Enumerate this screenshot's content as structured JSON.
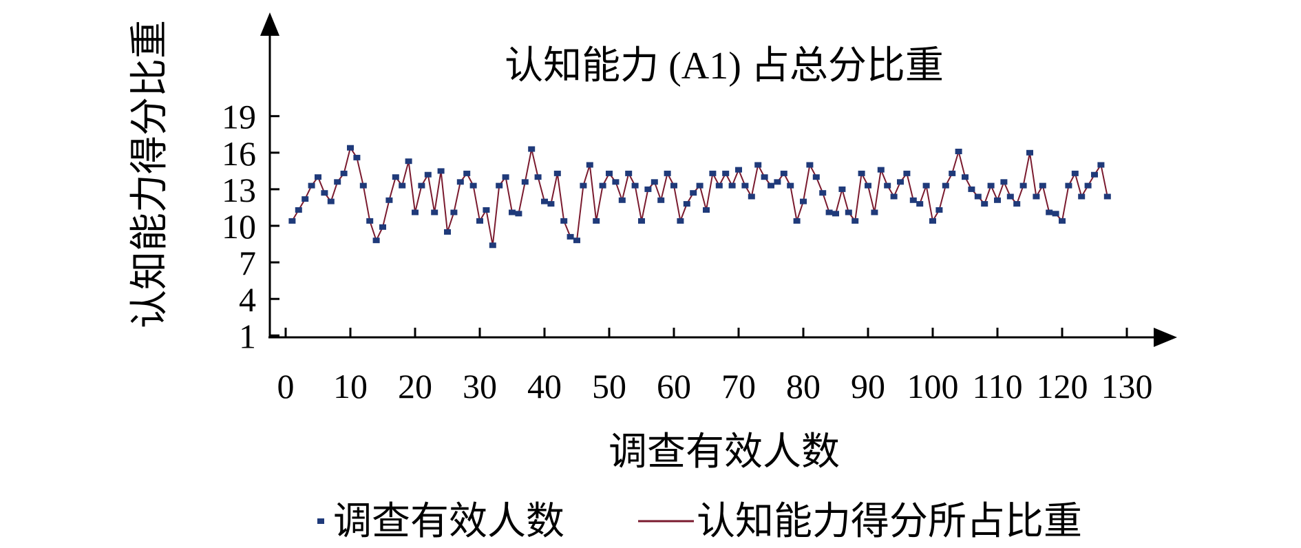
{
  "chart_data": {
    "type": "line",
    "title": "认知能力 (A1) 占总分比重",
    "xlabel": "调查有效人数",
    "ylabel": "认知能力得分比重",
    "xlim": [
      0,
      130
    ],
    "ylim": [
      0,
      20
    ],
    "x_ticks": [
      "0",
      "10",
      "20",
      "30",
      "40",
      "50",
      "60",
      "70",
      "80",
      "90",
      "100",
      "110",
      "120",
      "130"
    ],
    "y_ticks": [
      "1",
      "4",
      "7",
      "10",
      "13",
      "16",
      "19"
    ],
    "grid": false,
    "legend_position": "bottom",
    "series": [
      {
        "name": "调查有效人数",
        "kind": "markers",
        "color": "#1f3a7a"
      },
      {
        "name": "认知能力得分所占比重",
        "kind": "line",
        "color": "#7a1a2e",
        "x": [
          1,
          2,
          3,
          4,
          5,
          6,
          7,
          8,
          9,
          10,
          11,
          12,
          13,
          14,
          15,
          16,
          17,
          18,
          19,
          20,
          21,
          22,
          23,
          24,
          25,
          26,
          27,
          28,
          29,
          30,
          31,
          32,
          33,
          34,
          35,
          36,
          37,
          38,
          39,
          40,
          41,
          42,
          43,
          44,
          45,
          46,
          47,
          48,
          49,
          50,
          51,
          52,
          53,
          54,
          55,
          56,
          57,
          58,
          59,
          60,
          61,
          62,
          63,
          64,
          65,
          66,
          67,
          68,
          69,
          70,
          71,
          72,
          73,
          74,
          75,
          76,
          77,
          78,
          79,
          80,
          81,
          82,
          83,
          84,
          85,
          86,
          87,
          88,
          89,
          90,
          91,
          92,
          93,
          94,
          95,
          96,
          97,
          98,
          99,
          100,
          101,
          102,
          103,
          104,
          105,
          106,
          107,
          108,
          109,
          110,
          111,
          112,
          113,
          114,
          115,
          116,
          117,
          118,
          119,
          120,
          121,
          122,
          123,
          124,
          125,
          126,
          127
        ],
        "values": [
          10.4,
          11.3,
          12.2,
          13.3,
          14.0,
          12.7,
          12.0,
          13.6,
          14.3,
          16.4,
          15.6,
          13.3,
          10.4,
          8.8,
          9.9,
          12.1,
          14.0,
          13.3,
          15.3,
          11.1,
          13.3,
          14.2,
          11.1,
          14.5,
          9.5,
          11.1,
          13.6,
          14.3,
          13.3,
          10.4,
          11.3,
          8.4,
          13.3,
          14.0,
          11.1,
          11.0,
          13.6,
          16.3,
          14.0,
          12.0,
          11.8,
          14.3,
          10.4,
          9.1,
          8.8,
          13.3,
          15.0,
          10.4,
          13.3,
          14.3,
          13.6,
          12.1,
          14.3,
          13.3,
          10.4,
          13.0,
          13.6,
          12.1,
          14.3,
          13.3,
          10.4,
          11.8,
          12.7,
          13.3,
          11.3,
          14.3,
          13.3,
          14.3,
          13.3,
          14.6,
          13.3,
          12.4,
          15.0,
          14.0,
          13.3,
          13.6,
          14.3,
          13.3,
          10.4,
          12.0,
          15.0,
          14.0,
          12.7,
          11.1,
          11.0,
          13.0,
          11.1,
          10.4,
          14.3,
          13.3,
          11.1,
          14.6,
          13.3,
          12.4,
          13.6,
          14.3,
          12.1,
          11.8,
          13.3,
          10.4,
          11.3,
          13.3,
          14.3,
          16.1,
          14.0,
          13.0,
          12.4,
          11.8,
          13.3,
          12.1,
          13.6,
          12.4,
          11.8,
          13.3,
          16.0,
          12.4,
          13.3,
          11.1,
          11.0,
          10.4,
          13.3,
          14.3,
          12.4,
          13.3,
          14.2,
          15.0,
          12.4
        ]
      }
    ]
  }
}
